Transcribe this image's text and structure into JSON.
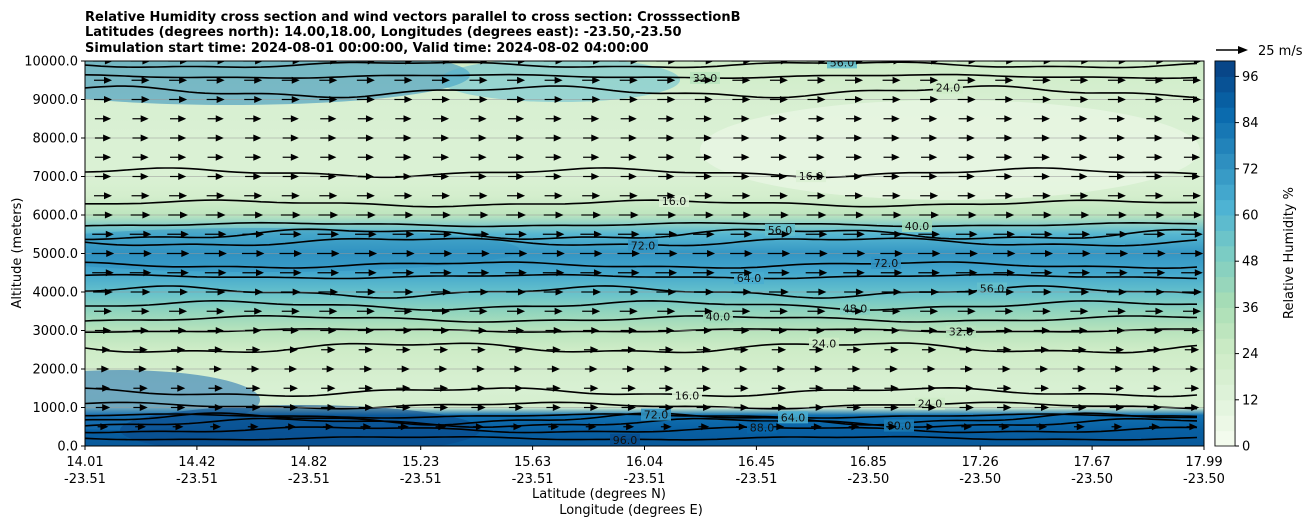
{
  "chart_data": {
    "type": "contour",
    "title_lines": [
      "Relative Humidity cross section and wind vectors parallel to cross section: CrosssectionB",
      "Latitudes (degrees north): 14.00,18.00, Longitudes (degrees east): -23.50,-23.50",
      "Simulation start time: 2024-08-01 00:00:00, Valid time: 2024-08-02 04:00:00"
    ],
    "ylabel": "Altitude (meters)",
    "xlabel_lat": "Latitude (degrees N)",
    "xlabel_lon": "Longitude (degrees E)",
    "ylim": [
      0,
      10000
    ],
    "yticks": [
      "0.0",
      "1000.0",
      "2000.0",
      "3000.0",
      "4000.0",
      "5000.0",
      "6000.0",
      "7000.0",
      "8000.0",
      "9000.0",
      "10000.0"
    ],
    "xticks_lat": [
      "14.01",
      "14.42",
      "14.82",
      "15.23",
      "15.63",
      "16.04",
      "16.45",
      "16.85",
      "17.26",
      "17.67",
      "17.99"
    ],
    "xticks_lon": [
      "-23.51",
      "-23.51",
      "-23.51",
      "-23.51",
      "-23.51",
      "-23.51",
      "-23.51",
      "-23.50",
      "-23.50",
      "-23.50",
      "-23.50"
    ],
    "colorbar_label": "Relative Humidity %",
    "colorbar_ticks": [
      "0",
      "12",
      "24",
      "36",
      "48",
      "60",
      "72",
      "84",
      "96"
    ],
    "colorbar_range": [
      0,
      100
    ],
    "quiver_key_label": "25 m/s",
    "grid": "horizontal",
    "colormap": "GnBu",
    "rh_profile": [
      {
        "z": 0,
        "rh": 92
      },
      {
        "z": 400,
        "rh": 90
      },
      {
        "z": 800,
        "rh": 84
      },
      {
        "z": 1000,
        "rh": 20
      },
      {
        "z": 1500,
        "rh": 17
      },
      {
        "z": 2000,
        "rh": 20
      },
      {
        "z": 2500,
        "rh": 24
      },
      {
        "z": 3000,
        "rh": 32
      },
      {
        "z": 3500,
        "rh": 44
      },
      {
        "z": 4000,
        "rh": 56
      },
      {
        "z": 4500,
        "rh": 66
      },
      {
        "z": 5000,
        "rh": 72
      },
      {
        "z": 5500,
        "rh": 60
      },
      {
        "z": 6000,
        "rh": 30
      },
      {
        "z": 6500,
        "rh": 20
      },
      {
        "z": 7000,
        "rh": 16
      },
      {
        "z": 8000,
        "rh": 16
      },
      {
        "z": 9000,
        "rh": 18
      },
      {
        "z": 10000,
        "rh": 24
      }
    ],
    "contour_levels": [
      {
        "label": "96.0",
        "z": 200
      },
      {
        "label": "88.0",
        "z": 420
      },
      {
        "label": "80.0",
        "z": 600
      },
      {
        "label": "72.0",
        "z": 700
      },
      {
        "label": "64.0",
        "z": 780
      },
      {
        "label": "24.0",
        "z": 1050
      },
      {
        "label": "16.0",
        "z": 1400
      },
      {
        "label": "24.0",
        "z": 2550
      },
      {
        "label": "32.0",
        "z": 3000
      },
      {
        "label": "40.0",
        "z": 3300
      },
      {
        "label": "48.0",
        "z": 3650
      },
      {
        "label": "56.0",
        "z": 4000
      },
      {
        "label": "64.0",
        "z": 4400
      },
      {
        "label": "72.0",
        "z": 4700
      },
      {
        "label": "72.0",
        "z": 5300
      },
      {
        "label": "56.0",
        "z": 5500
      },
      {
        "label": "40.0",
        "z": 5750
      },
      {
        "label": "16.0",
        "z": 6300
      },
      {
        "label": "16.0",
        "z": 7100
      },
      {
        "label": "24.0",
        "z": 9200
      },
      {
        "label": "32.0",
        "z": 9600
      },
      {
        "label": "56.0",
        "z": 9900
      }
    ],
    "wind_rows_z": [
      500,
      1000,
      1500,
      2000,
      2500,
      3000,
      3500,
      4000,
      4500,
      5000,
      5500,
      6000,
      6500,
      7000,
      7500,
      8000,
      8500,
      9000,
      9500,
      10000
    ],
    "wind_cols": 30,
    "wind_speed_by_row": [
      12,
      16,
      16,
      14,
      16,
      18,
      20,
      22,
      24,
      25,
      24,
      22,
      20,
      18,
      18,
      18,
      18,
      20,
      20,
      22
    ]
  }
}
